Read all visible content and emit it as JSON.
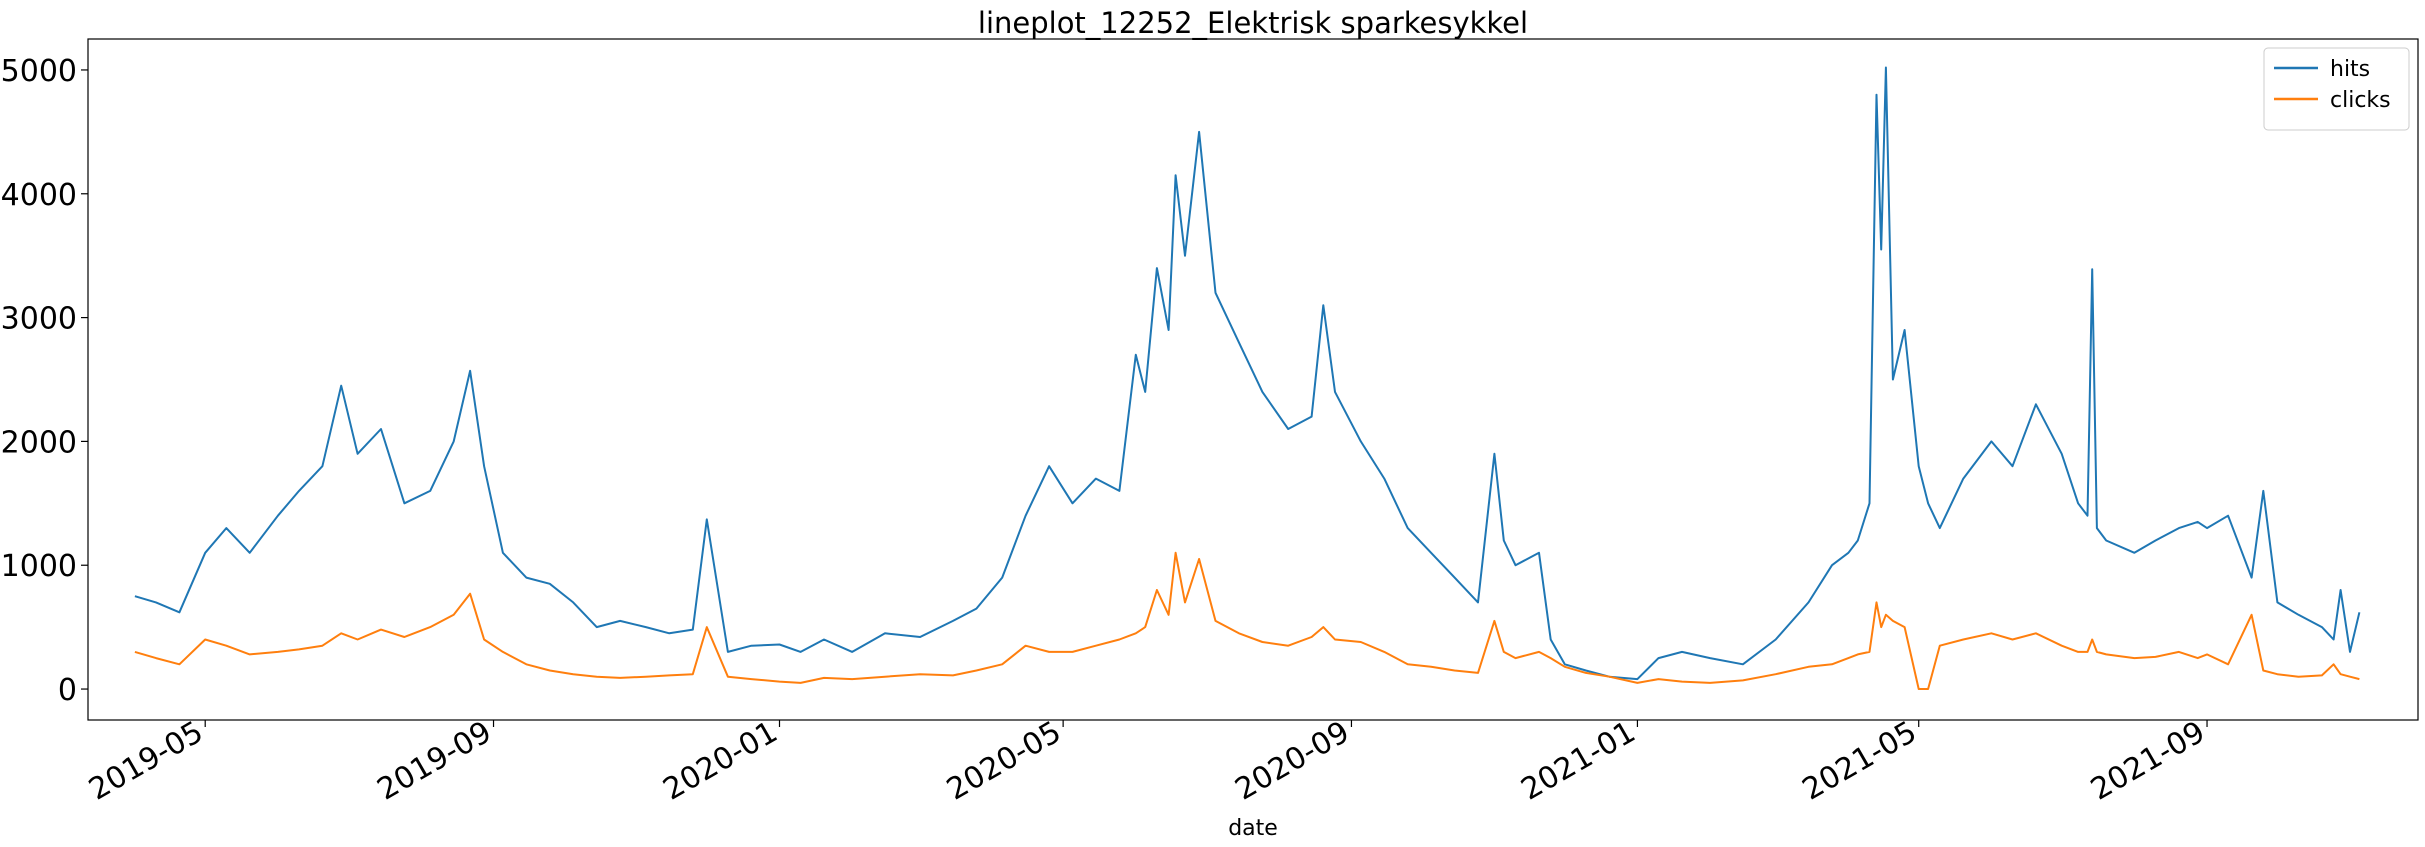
{
  "chart_data": {
    "type": "line",
    "title": "lineplot_12252_Elektrisk sparkesykkel",
    "xlabel": "date",
    "ylabel": "",
    "xlim": [
      "2019-03-12",
      "2021-11-30"
    ],
    "ylim": [
      -250,
      5250
    ],
    "yticks": [
      0,
      1000,
      2000,
      3000,
      4000,
      5000
    ],
    "xticks": [
      "2019-05",
      "2019-09",
      "2020-01",
      "2020-05",
      "2020-09",
      "2021-01",
      "2021-05",
      "2021-09"
    ],
    "grid": false,
    "legend_position": "top-right",
    "colors": {
      "hits": "#1f77b4",
      "clicks": "#ff7f0e"
    },
    "series": [
      {
        "name": "hits",
        "color": "#1f77b4",
        "x": [
          "2019-04-01",
          "2019-04-10",
          "2019-04-20",
          "2019-05-01",
          "2019-05-10",
          "2019-05-20",
          "2019-06-01",
          "2019-06-10",
          "2019-06-20",
          "2019-06-28",
          "2019-07-05",
          "2019-07-15",
          "2019-07-25",
          "2019-08-05",
          "2019-08-15",
          "2019-08-22",
          "2019-08-28",
          "2019-09-05",
          "2019-09-15",
          "2019-09-25",
          "2019-10-05",
          "2019-10-15",
          "2019-10-25",
          "2019-11-05",
          "2019-11-15",
          "2019-11-25",
          "2019-12-01",
          "2019-12-10",
          "2019-12-20",
          "2020-01-01",
          "2020-01-10",
          "2020-01-20",
          "2020-02-01",
          "2020-02-15",
          "2020-03-01",
          "2020-03-15",
          "2020-03-25",
          "2020-04-05",
          "2020-04-15",
          "2020-04-25",
          "2020-05-05",
          "2020-05-15",
          "2020-05-25",
          "2020-06-01",
          "2020-06-05",
          "2020-06-10",
          "2020-06-15",
          "2020-06-18",
          "2020-06-22",
          "2020-06-28",
          "2020-07-05",
          "2020-07-15",
          "2020-07-25",
          "2020-08-05",
          "2020-08-15",
          "2020-08-20",
          "2020-08-25",
          "2020-09-05",
          "2020-09-15",
          "2020-09-25",
          "2020-10-05",
          "2020-10-15",
          "2020-10-25",
          "2020-11-01",
          "2020-11-05",
          "2020-11-10",
          "2020-11-20",
          "2020-11-25",
          "2020-12-01",
          "2020-12-10",
          "2020-12-20",
          "2021-01-01",
          "2021-01-10",
          "2021-01-20",
          "2021-02-01",
          "2021-02-15",
          "2021-03-01",
          "2021-03-15",
          "2021-03-25",
          "2021-04-01",
          "2021-04-05",
          "2021-04-10",
          "2021-04-13",
          "2021-04-15",
          "2021-04-17",
          "2021-04-20",
          "2021-04-25",
          "2021-05-01",
          "2021-05-05",
          "2021-05-10",
          "2021-05-20",
          "2021-06-01",
          "2021-06-10",
          "2021-06-20",
          "2021-07-01",
          "2021-07-08",
          "2021-07-12",
          "2021-07-14",
          "2021-07-16",
          "2021-07-20",
          "2021-08-01",
          "2021-08-10",
          "2021-08-20",
          "2021-08-28",
          "2021-09-01",
          "2021-09-10",
          "2021-09-20",
          "2021-09-25",
          "2021-10-01",
          "2021-10-10",
          "2021-10-20",
          "2021-10-25",
          "2021-10-28",
          "2021-11-01",
          "2021-11-05"
        ],
        "values": [
          750,
          700,
          620,
          1100,
          1300,
          1100,
          1400,
          1600,
          1800,
          2450,
          1900,
          2100,
          1500,
          1600,
          2000,
          2570,
          1800,
          1100,
          900,
          850,
          700,
          500,
          550,
          500,
          450,
          480,
          1370,
          300,
          350,
          360,
          300,
          400,
          300,
          450,
          420,
          550,
          650,
          900,
          1400,
          1800,
          1500,
          1700,
          1600,
          2700,
          2400,
          3400,
          2900,
          4150,
          3500,
          4500,
          3200,
          2800,
          2400,
          2100,
          2200,
          3100,
          2400,
          2000,
          1700,
          1300,
          1100,
          900,
          700,
          1900,
          1200,
          1000,
          1100,
          400,
          200,
          150,
          100,
          80,
          250,
          300,
          250,
          200,
          400,
          700,
          1000,
          1100,
          1200,
          1500,
          4800,
          3550,
          5020,
          2500,
          2900,
          1800,
          1500,
          1300,
          1700,
          2000,
          1800,
          2300,
          1900,
          1500,
          1400,
          3390,
          1300,
          1200,
          1100,
          1200,
          1300,
          1350,
          1300,
          1400,
          900,
          1600,
          700,
          600,
          500,
          400,
          800,
          300,
          620
        ]
      },
      {
        "name": "clicks",
        "color": "#ff7f0e",
        "x": [
          "2019-04-01",
          "2019-04-10",
          "2019-04-20",
          "2019-05-01",
          "2019-05-10",
          "2019-05-20",
          "2019-06-01",
          "2019-06-10",
          "2019-06-20",
          "2019-06-28",
          "2019-07-05",
          "2019-07-15",
          "2019-07-25",
          "2019-08-05",
          "2019-08-15",
          "2019-08-22",
          "2019-08-28",
          "2019-09-05",
          "2019-09-15",
          "2019-09-25",
          "2019-10-05",
          "2019-10-15",
          "2019-10-25",
          "2019-11-05",
          "2019-11-15",
          "2019-11-25",
          "2019-12-01",
          "2019-12-10",
          "2019-12-20",
          "2020-01-01",
          "2020-01-10",
          "2020-01-20",
          "2020-02-01",
          "2020-02-15",
          "2020-03-01",
          "2020-03-15",
          "2020-03-25",
          "2020-04-05",
          "2020-04-15",
          "2020-04-25",
          "2020-05-05",
          "2020-05-15",
          "2020-05-25",
          "2020-06-01",
          "2020-06-05",
          "2020-06-10",
          "2020-06-15",
          "2020-06-18",
          "2020-06-22",
          "2020-06-28",
          "2020-07-05",
          "2020-07-15",
          "2020-07-25",
          "2020-08-05",
          "2020-08-15",
          "2020-08-20",
          "2020-08-25",
          "2020-09-05",
          "2020-09-15",
          "2020-09-25",
          "2020-10-05",
          "2020-10-15",
          "2020-10-25",
          "2020-11-01",
          "2020-11-05",
          "2020-11-10",
          "2020-11-20",
          "2020-11-25",
          "2020-12-01",
          "2020-12-10",
          "2020-12-20",
          "2021-01-01",
          "2021-01-10",
          "2021-01-20",
          "2021-02-01",
          "2021-02-15",
          "2021-03-01",
          "2021-03-15",
          "2021-03-25",
          "2021-04-01",
          "2021-04-05",
          "2021-04-10",
          "2021-04-13",
          "2021-04-15",
          "2021-04-17",
          "2021-04-20",
          "2021-04-25",
          "2021-05-01",
          "2021-05-05",
          "2021-05-10",
          "2021-05-20",
          "2021-06-01",
          "2021-06-10",
          "2021-06-20",
          "2021-07-01",
          "2021-07-08",
          "2021-07-12",
          "2021-07-14",
          "2021-07-16",
          "2021-07-20",
          "2021-08-01",
          "2021-08-10",
          "2021-08-20",
          "2021-08-28",
          "2021-09-01",
          "2021-09-10",
          "2021-09-20",
          "2021-09-25",
          "2021-10-01",
          "2021-10-10",
          "2021-10-20",
          "2021-10-25",
          "2021-10-28",
          "2021-11-01",
          "2021-11-05"
        ],
        "values": [
          300,
          250,
          200,
          400,
          350,
          280,
          300,
          320,
          350,
          450,
          400,
          480,
          420,
          500,
          600,
          770,
          400,
          300,
          200,
          150,
          120,
          100,
          90,
          100,
          110,
          120,
          500,
          100,
          80,
          60,
          50,
          90,
          80,
          100,
          120,
          110,
          150,
          200,
          350,
          300,
          300,
          350,
          400,
          450,
          500,
          800,
          600,
          1100,
          700,
          1050,
          550,
          450,
          380,
          350,
          420,
          500,
          400,
          380,
          300,
          200,
          180,
          150,
          130,
          550,
          300,
          250,
          300,
          250,
          180,
          130,
          100,
          50,
          80,
          60,
          50,
          70,
          120,
          180,
          200,
          250,
          280,
          300,
          700,
          500,
          600,
          550,
          500,
          0,
          0,
          350,
          400,
          450,
          400,
          450,
          350,
          300,
          300,
          400,
          300,
          280,
          250,
          260,
          300,
          250,
          280,
          200,
          600,
          150,
          120,
          100,
          110,
          200,
          120,
          100,
          80
        ]
      }
    ]
  }
}
